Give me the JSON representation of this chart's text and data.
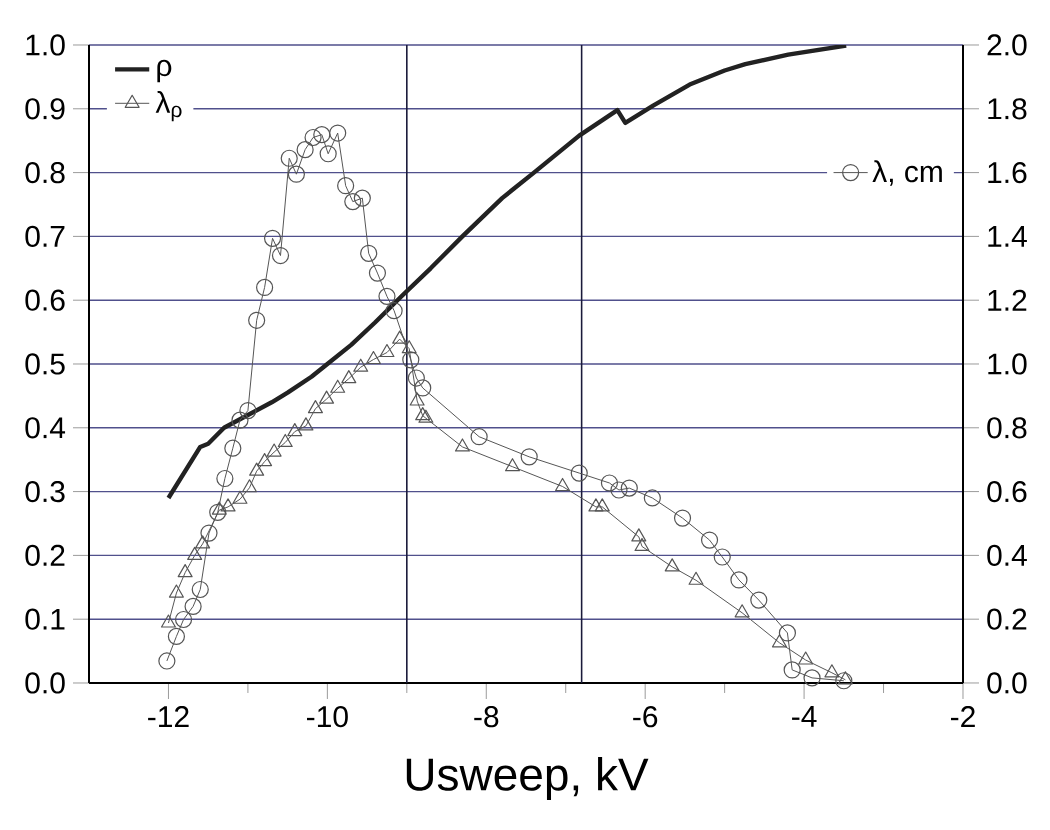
{
  "chart_data": {
    "type": "line",
    "xlabel": "Usweep, kV",
    "xlim": [
      -13,
      -2
    ],
    "xticks": [
      -12,
      -10,
      -8,
      -6,
      -4,
      -2
    ],
    "ylim": [
      0,
      1.0
    ],
    "yticks": [
      {
        "value": 0,
        "label": "0.0"
      },
      {
        "value": 0.1,
        "label": "0.1"
      },
      {
        "value": 0.2,
        "label": "0.2"
      },
      {
        "value": 0.3,
        "label": "0.3"
      },
      {
        "value": 0.4,
        "label": "0.4"
      },
      {
        "value": 0.5,
        "label": "0.5"
      },
      {
        "value": 0.6,
        "label": "0.6"
      },
      {
        "value": 0.7,
        "label": "0.7"
      },
      {
        "value": 0.8,
        "label": "0.8"
      },
      {
        "value": 0.9,
        "label": "0.9"
      },
      {
        "value": 1.0,
        "label": "1.0"
      }
    ],
    "y2lim": [
      0,
      2.0
    ],
    "y2ticks": [
      {
        "value": 0,
        "label": "0.0"
      },
      {
        "value": 0.2,
        "label": "0.2"
      },
      {
        "value": 0.4,
        "label": "0.4"
      },
      {
        "value": 0.6,
        "label": "0.6"
      },
      {
        "value": 0.8,
        "label": "0.8"
      },
      {
        "value": 1.0,
        "label": "1.0"
      },
      {
        "value": 1.2,
        "label": "1.2"
      },
      {
        "value": 1.4,
        "label": "1.4"
      },
      {
        "value": 1.6,
        "label": "1.6"
      },
      {
        "value": 1.8,
        "label": "1.8"
      },
      {
        "value": 2.0,
        "label": "2.0"
      }
    ],
    "grid": "y",
    "legend": "top left",
    "ref_lines": [
      {
        "axis": "x",
        "value": -9.0,
        "color": "#1a1a3a"
      },
      {
        "axis": "x",
        "value": -6.8,
        "color": "#1a1a3a"
      }
    ],
    "series": [
      {
        "name": "ρ",
        "color": "#222222",
        "marker": "none",
        "x": [
          -12,
          -11.8,
          -11.6,
          -11.5,
          -11.3,
          -11.0,
          -10.7,
          -10.5,
          -10.2,
          -10.0,
          -9.7,
          -9.4,
          -9.06,
          -8.7,
          -8.3,
          -7.8,
          -7.4,
          -6.83,
          -6.35,
          -6.25,
          -5.9,
          -5.44,
          -5.0,
          -4.74,
          -4.2,
          -3.47
        ],
        "values": [
          0.29,
          0.33,
          0.37,
          0.375,
          0.4,
          0.42,
          0.44,
          0.455,
          0.48,
          0.5,
          0.53,
          0.565,
          0.607,
          0.65,
          0.7,
          0.76,
          0.8,
          0.858,
          0.898,
          0.878,
          0.905,
          0.938,
          0.96,
          0.97,
          0.985,
          0.999
        ]
      },
      {
        "name": "λ$_{ρ}$",
        "color": "#555555",
        "marker": "triangle",
        "x": [
          -12,
          -11.9,
          -11.79,
          -11.67,
          -11.57,
          -11.36,
          -11.25,
          -11.1,
          -10.98,
          -10.89,
          -10.79,
          -10.67,
          -10.53,
          -10.41,
          -10.27,
          -10.15,
          -10.01,
          -9.87,
          -9.73,
          -9.58,
          -9.42,
          -9.25,
          -9.09,
          -8.97,
          -8.87,
          -8.8,
          -8.76,
          -8.3,
          -7.67,
          -7.04,
          -6.62,
          -6.54,
          -6.08,
          -6.04,
          -5.66,
          -5.36,
          -4.78,
          -4.31,
          -3.98,
          -3.65,
          -3.48
        ],
        "values": [
          0.094,
          0.141,
          0.173,
          0.2,
          0.218,
          0.271,
          0.276,
          0.288,
          0.306,
          0.332,
          0.347,
          0.362,
          0.377,
          0.394,
          0.403,
          0.43,
          0.445,
          0.462,
          0.477,
          0.495,
          0.507,
          0.518,
          0.539,
          0.524,
          0.442,
          0.419,
          0.415,
          0.37,
          0.339,
          0.308,
          0.276,
          0.276,
          0.229,
          0.214,
          0.182,
          0.161,
          0.11,
          0.063,
          0.036,
          0.016,
          0.005
        ]
      },
      {
        "name": "λ, cm",
        "axis": "y2",
        "color": "#555555",
        "marker": "circle",
        "x": [
          -12.02,
          -11.9,
          -11.81,
          -11.69,
          -11.6,
          -11.49,
          -11.38,
          -11.29,
          -11.19,
          -11.1,
          -11.0,
          -10.89,
          -10.79,
          -10.69,
          -10.59,
          -10.48,
          -10.39,
          -10.28,
          -10.18,
          -10.07,
          -9.99,
          -9.87,
          -9.77,
          -9.68,
          -9.56,
          -9.48,
          -9.37,
          -9.25,
          -9.16,
          -8.95,
          -8.88,
          -8.8,
          -8.09,
          -7.46,
          -6.83,
          -6.45,
          -6.33,
          -6.2,
          -5.91,
          -5.53,
          -5.19,
          -5.03,
          -4.82,
          -4.57,
          -4.21,
          -4.15,
          -3.9,
          -3.5
        ],
        "values": [
          0.069,
          0.146,
          0.199,
          0.24,
          0.293,
          0.47,
          0.535,
          0.641,
          0.736,
          0.824,
          0.854,
          1.137,
          1.24,
          1.394,
          1.34,
          1.645,
          1.595,
          1.672,
          1.71,
          1.719,
          1.659,
          1.724,
          1.559,
          1.509,
          1.52,
          1.347,
          1.285,
          1.212,
          1.167,
          1.013,
          0.956,
          0.925,
          0.772,
          0.709,
          0.658,
          0.627,
          0.605,
          0.611,
          0.58,
          0.517,
          0.448,
          0.395,
          0.323,
          0.26,
          0.157,
          0.041,
          0.016,
          0.007
        ]
      }
    ]
  }
}
